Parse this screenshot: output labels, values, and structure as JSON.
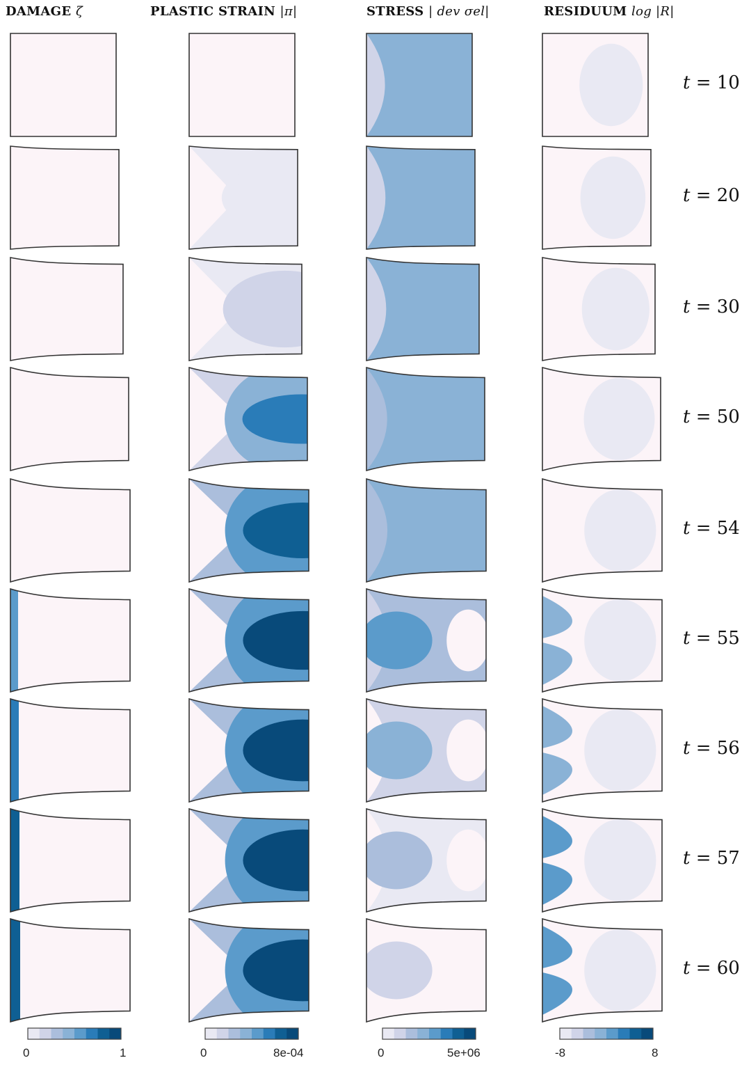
{
  "headers": {
    "damage": {
      "title": "DAMAGE",
      "symbol": "ζ"
    },
    "plastic": {
      "title": "PLASTIC STRAIN",
      "symbol": "|π|"
    },
    "stress": {
      "title": "STRESS",
      "symbol": "| dev σel|"
    },
    "residuum": {
      "title": "RESIDUUM",
      "symbol": "log |R|"
    }
  },
  "time_prefix": "t =",
  "times": [
    "10",
    "20",
    "30",
    "50",
    "54",
    "55",
    "56",
    "57",
    "60"
  ],
  "colorbars": {
    "damage": {
      "min": "0",
      "max": "1"
    },
    "plastic": {
      "min": "0",
      "max": "8e-04"
    },
    "stress": {
      "min": "0",
      "max": "5e+06"
    },
    "residuum": {
      "min": "-8",
      "max": "8"
    }
  },
  "palette": [
    "#fcf4f8",
    "#e9e9f3",
    "#d0d4e8",
    "#abbedc",
    "#8ab2d6",
    "#5b9bcb",
    "#2a7cb8",
    "#0f5f93",
    "#084a7a"
  ],
  "panels_levels": {
    "damage": [
      0,
      0,
      0,
      0,
      0,
      0.6,
      0.75,
      0.85,
      0.9
    ],
    "plastic": [
      0,
      0.2,
      0.35,
      0.8,
      0.9,
      0.95,
      1.0,
      1.0,
      1.0
    ],
    "stress": [
      0.5,
      0.5,
      0.55,
      0.6,
      0.6,
      0.45,
      0.3,
      0.15,
      0.05
    ],
    "residuum": [
      0.05,
      0.05,
      0.05,
      0.05,
      0.05,
      0.5,
      0.55,
      0.6,
      0.65
    ]
  }
}
